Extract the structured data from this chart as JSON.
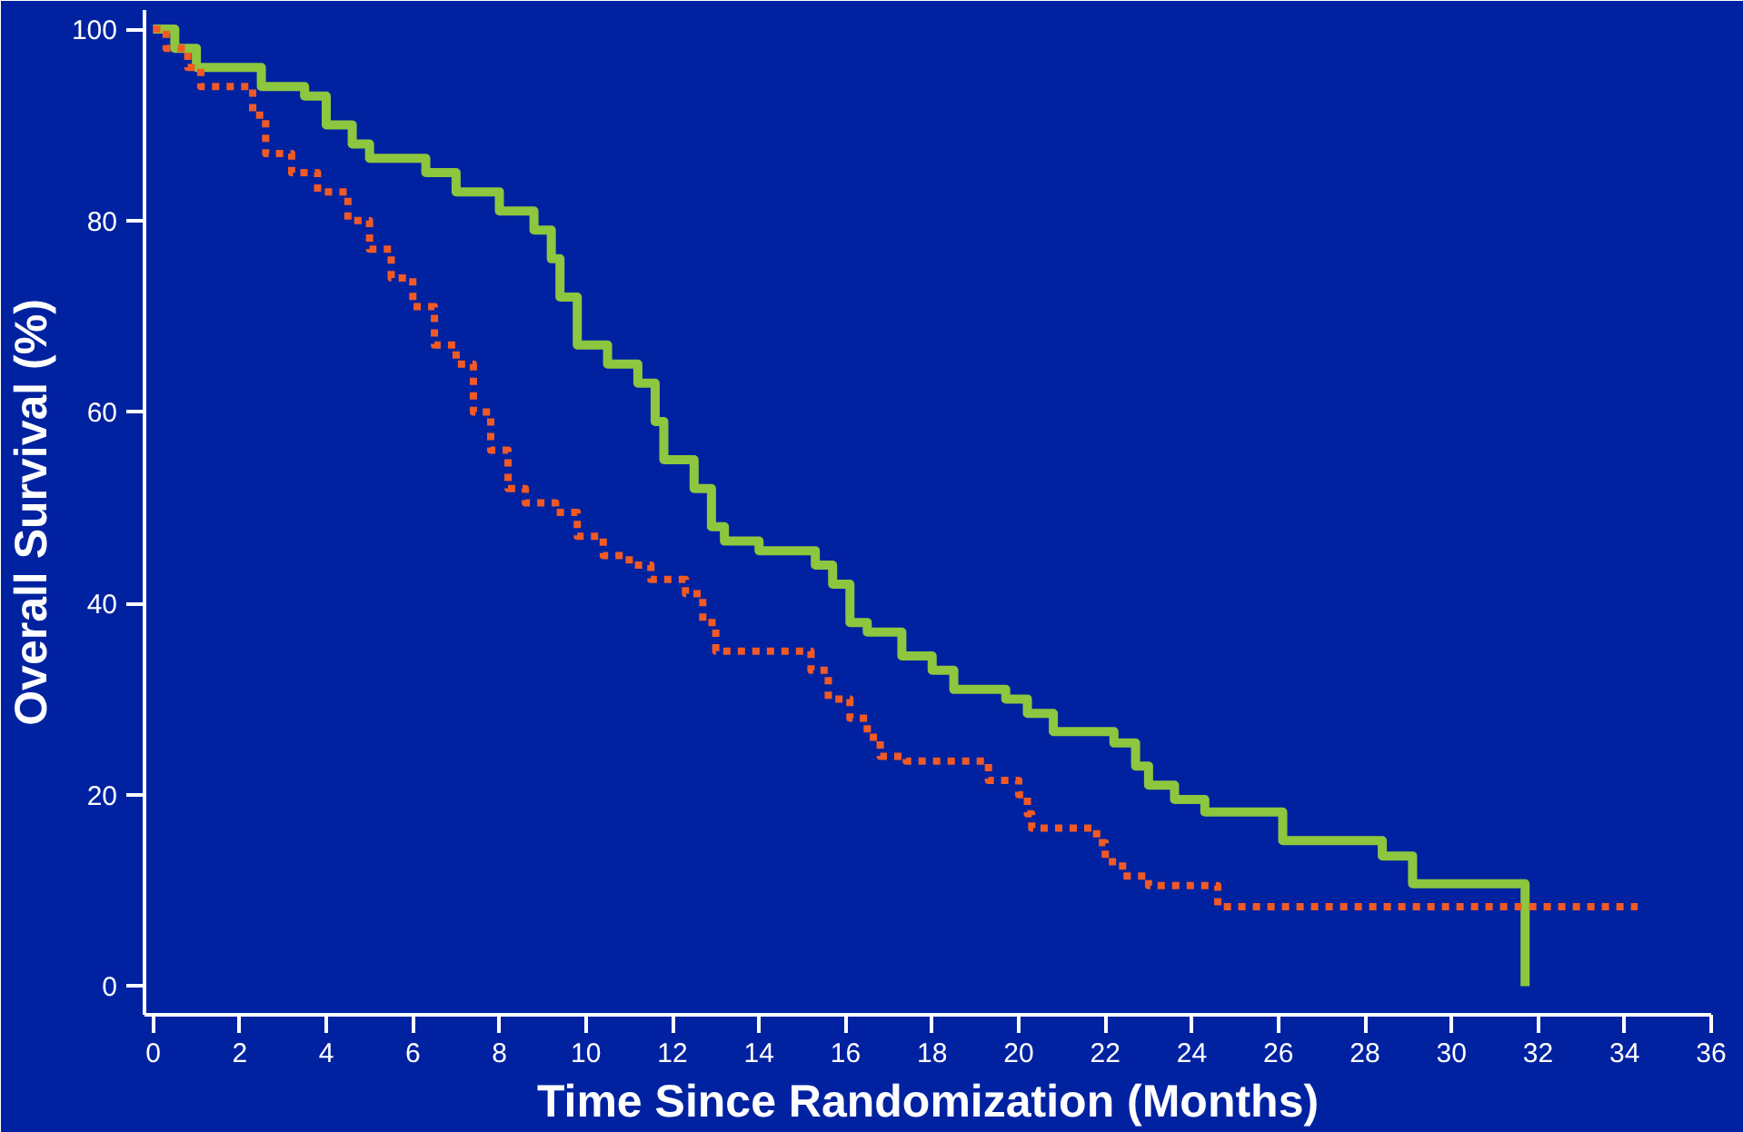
{
  "chart_data": {
    "type": "step",
    "xlabel": "Time Since Randomization (Months)",
    "ylabel": "Overall Survival (%)",
    "xlim": [
      -0.2,
      36
    ],
    "ylim": [
      -3,
      102
    ],
    "xticks": [
      0,
      2,
      4,
      6,
      8,
      10,
      12,
      14,
      16,
      18,
      20,
      22,
      24,
      26,
      28,
      30,
      32,
      34,
      36
    ],
    "yticks": [
      0,
      20,
      40,
      60,
      80,
      100
    ],
    "grid": false,
    "series": [
      {
        "color": "#8dc63f",
        "line_style": "solid",
        "x": [
          0,
          0.5,
          1,
          2.5,
          3.5,
          4,
          4.6,
          5,
          6.3,
          7,
          8,
          8.8,
          9.2,
          9.4,
          9.8,
          10.5,
          11.2,
          11.6,
          11.8,
          12.5,
          12.9,
          13.2,
          14,
          15.3,
          15.7,
          16.1,
          16.5,
          17.3,
          18,
          18.5,
          19.7,
          20.2,
          20.8,
          22.2,
          22.7,
          23,
          23.6,
          24.3,
          26.1,
          28.4,
          29.1,
          31.7,
          31.7
        ],
        "values": [
          100,
          98,
          96,
          94,
          93,
          90,
          88,
          86.5,
          85,
          83,
          81,
          79,
          76,
          72,
          67,
          65,
          63,
          59,
          55,
          52,
          48,
          46.5,
          45.5,
          44,
          42,
          38,
          37,
          34.5,
          33,
          31,
          30,
          28.5,
          26.6,
          25.4,
          23,
          21,
          19.5,
          18.2,
          15.2,
          13.6,
          10.7,
          10.7,
          0
        ]
      },
      {
        "color": "#f15a24",
        "line_style": "dotted",
        "x": [
          0,
          0.3,
          0.8,
          1.1,
          2.3,
          2.6,
          3.2,
          3.8,
          4.5,
          5,
          5.5,
          6,
          6.5,
          7,
          7.4,
          7.8,
          8.2,
          8.6,
          9.3,
          9.8,
          10.4,
          11,
          11.5,
          12.3,
          12.7,
          13,
          14.9,
          15.2,
          15.6,
          16.1,
          16.5,
          16.8,
          17.4,
          19.3,
          20,
          20.2,
          20.3,
          21.8,
          22,
          22.4,
          23,
          24.6,
          34.3
        ],
        "values": [
          100,
          98,
          96,
          94,
          91,
          87,
          85,
          83,
          80,
          77,
          74,
          71,
          67,
          65,
          60,
          56,
          52,
          50.5,
          49.5,
          47,
          45,
          44,
          42.5,
          41,
          38,
          35,
          35,
          33,
          30,
          28,
          26,
          24,
          23.5,
          21.5,
          20,
          18,
          16.5,
          15,
          13,
          11.5,
          10.5,
          8.3,
          8.3
        ]
      }
    ]
  }
}
